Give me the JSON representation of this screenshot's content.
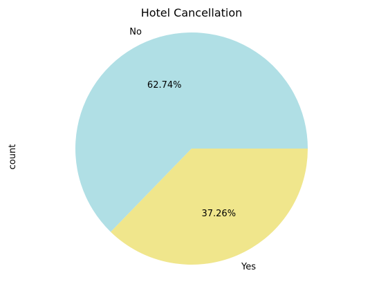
{
  "chart_data": {
    "type": "pie",
    "title": "Hotel Cancellation",
    "ylabel": "count",
    "categories": [
      "No",
      "Yes"
    ],
    "values": [
      62.74,
      37.26
    ],
    "value_labels": [
      "62.74%",
      "37.26%"
    ],
    "colors": [
      "#b0dfe5",
      "#f0e68c"
    ],
    "start_angle_deg": 0,
    "direction": "counterclockwise"
  }
}
